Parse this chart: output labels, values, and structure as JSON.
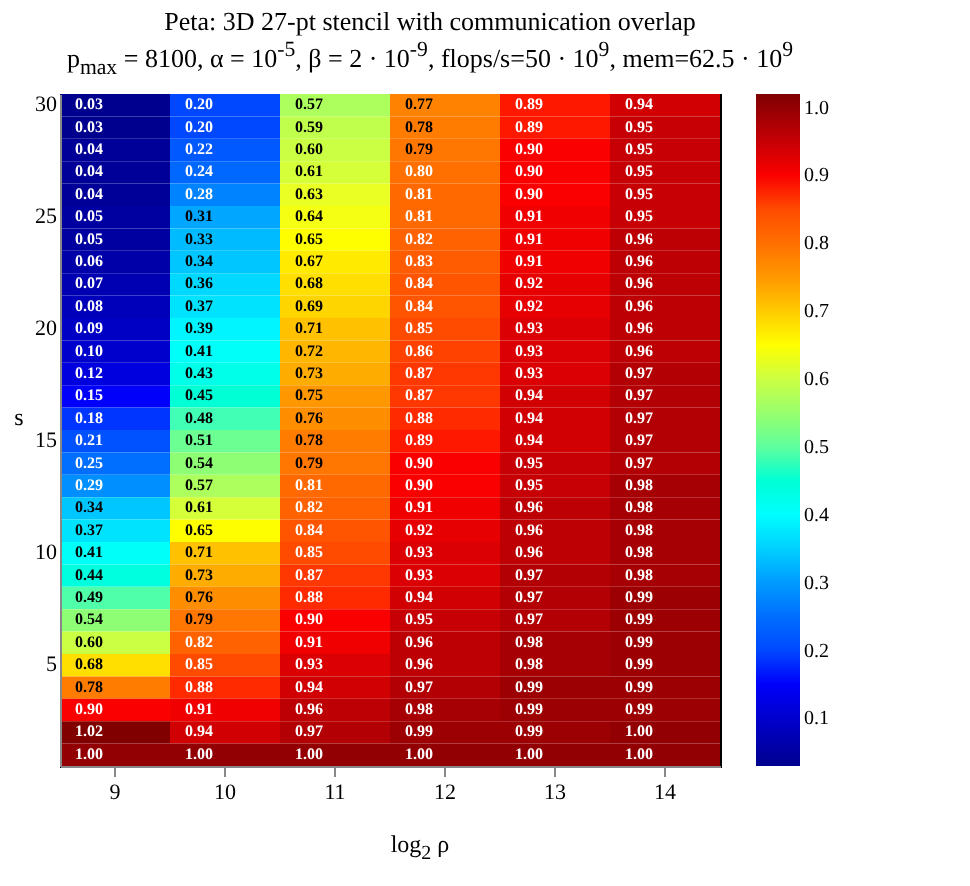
{
  "chart_data": {
    "type": "heatmap",
    "title": "Peta: 3D 27-pt stencil with communication overlap",
    "subtitle": "p$_{max}$ = 8100, α = 10$^{-5}$, β = 2 · 10$^{-9}$, flops/s=50 · 10$^{9}$, mem=62.5 · 10$^{9}$",
    "xlabel": "log$_{2}$ ρ",
    "ylabel": "s",
    "categories": [
      "9",
      "10",
      "11",
      "12",
      "13",
      "14"
    ],
    "y_categories": [
      "30",
      null,
      null,
      null,
      null,
      "25",
      null,
      null,
      null,
      null,
      "20",
      null,
      null,
      null,
      null,
      "15",
      null,
      null,
      null,
      null,
      "10",
      null,
      null,
      null,
      null,
      "5",
      null,
      null,
      null,
      null
    ],
    "cells": [
      [
        0.03,
        0.2,
        0.57,
        0.77,
        0.89,
        0.94
      ],
      [
        0.03,
        0.2,
        0.59,
        0.78,
        0.89,
        0.95
      ],
      [
        0.04,
        0.22,
        0.6,
        0.79,
        0.9,
        0.95
      ],
      [
        0.04,
        0.24,
        0.61,
        0.8,
        0.9,
        0.95
      ],
      [
        0.04,
        0.28,
        0.63,
        0.81,
        0.9,
        0.95
      ],
      [
        0.05,
        0.31,
        0.64,
        0.81,
        0.91,
        0.95
      ],
      [
        0.05,
        0.33,
        0.65,
        0.82,
        0.91,
        0.96
      ],
      [
        0.06,
        0.34,
        0.67,
        0.83,
        0.91,
        0.96
      ],
      [
        0.07,
        0.36,
        0.68,
        0.84,
        0.92,
        0.96
      ],
      [
        0.08,
        0.37,
        0.69,
        0.84,
        0.92,
        0.96
      ],
      [
        0.09,
        0.39,
        0.71,
        0.85,
        0.93,
        0.96
      ],
      [
        0.1,
        0.41,
        0.72,
        0.86,
        0.93,
        0.96
      ],
      [
        0.12,
        0.43,
        0.73,
        0.87,
        0.93,
        0.97
      ],
      [
        0.15,
        0.45,
        0.75,
        0.87,
        0.94,
        0.97
      ],
      [
        0.18,
        0.48,
        0.76,
        0.88,
        0.94,
        0.97
      ],
      [
        0.21,
        0.51,
        0.78,
        0.89,
        0.94,
        0.97
      ],
      [
        0.25,
        0.54,
        0.79,
        0.9,
        0.95,
        0.97
      ],
      [
        0.29,
        0.57,
        0.81,
        0.9,
        0.95,
        0.98
      ],
      [
        0.34,
        0.61,
        0.82,
        0.91,
        0.96,
        0.98
      ],
      [
        0.37,
        0.65,
        0.84,
        0.92,
        0.96,
        0.98
      ],
      [
        0.41,
        0.71,
        0.85,
        0.93,
        0.96,
        0.98
      ],
      [
        0.44,
        0.73,
        0.87,
        0.93,
        0.97,
        0.98
      ],
      [
        0.49,
        0.76,
        0.88,
        0.94,
        0.97,
        0.99
      ],
      [
        0.54,
        0.79,
        0.9,
        0.95,
        0.97,
        0.99
      ],
      [
        0.6,
        0.82,
        0.91,
        0.96,
        0.98,
        0.99
      ],
      [
        0.68,
        0.85,
        0.93,
        0.96,
        0.98,
        0.99
      ],
      [
        0.78,
        0.88,
        0.94,
        0.97,
        0.99,
        0.99
      ],
      [
        0.9,
        0.91,
        0.96,
        0.98,
        0.99,
        0.99
      ],
      [
        1.02,
        0.94,
        0.97,
        0.99,
        0.99,
        1.0
      ],
      [
        1.0,
        1.0,
        1.0,
        1.0,
        1.0,
        1.0
      ]
    ],
    "cell_labels": [
      [
        "0.03",
        "0.20",
        "0.57",
        "0.77",
        "0.89",
        "0.94"
      ],
      [
        "0.03",
        "0.20",
        "0.59",
        "0.78",
        "0.89",
        "0.95"
      ],
      [
        "0.04",
        "0.22",
        "0.60",
        "0.79",
        "0.90",
        "0.95"
      ],
      [
        "0.04",
        "0.24",
        "0.61",
        "0.80",
        "0.90",
        "0.95"
      ],
      [
        "0.04",
        "0.28",
        "0.63",
        "0.81",
        "0.90",
        "0.95"
      ],
      [
        "0.05",
        "0.31",
        "0.64",
        "0.81",
        "0.91",
        "0.95"
      ],
      [
        "0.05",
        "0.33",
        "0.65",
        "0.82",
        "0.91",
        "0.96"
      ],
      [
        "0.06",
        "0.34",
        "0.67",
        "0.83",
        "0.91",
        "0.96"
      ],
      [
        "0.07",
        "0.36",
        "0.68",
        "0.84",
        "0.92",
        "0.96"
      ],
      [
        "0.08",
        "0.37",
        "0.69",
        "0.84",
        "0.92",
        "0.96"
      ],
      [
        "0.09",
        "0.39",
        "0.71",
        "0.85",
        "0.93",
        "0.96"
      ],
      [
        "0.10",
        "0.41",
        "0.72",
        "0.86",
        "0.93",
        "0.96"
      ],
      [
        "0.12",
        "0.43",
        "0.73",
        "0.87",
        "0.93",
        "0.97"
      ],
      [
        "0.15",
        "0.45",
        "0.75",
        "0.87",
        "0.94",
        "0.97"
      ],
      [
        "0.18",
        "0.48",
        "0.76",
        "0.88",
        "0.94",
        "0.97"
      ],
      [
        "0.21",
        "0.51",
        "0.78",
        "0.89",
        "0.94",
        "0.97"
      ],
      [
        "0.25",
        "0.54",
        "0.79",
        "0.90",
        "0.95",
        "0.97"
      ],
      [
        "0.29",
        "0.57",
        "0.81",
        "0.90",
        "0.95",
        "0.98"
      ],
      [
        "0.34",
        "0.61",
        "0.82",
        "0.91",
        "0.96",
        "0.98"
      ],
      [
        "0.37",
        "0.65",
        "0.84",
        "0.92",
        "0.96",
        "0.98"
      ],
      [
        "0.41",
        "0.71",
        "0.85",
        "0.93",
        "0.96",
        "0.98"
      ],
      [
        "0.44",
        "0.73",
        "0.87",
        "0.93",
        "0.97",
        "0.98"
      ],
      [
        "0.49",
        "0.76",
        "0.88",
        "0.94",
        "0.97",
        "0.99"
      ],
      [
        "0.54",
        "0.79",
        "0.90",
        "0.95",
        "0.97",
        "0.99"
      ],
      [
        "0.60",
        "0.82",
        "0.91",
        "0.96",
        "0.98",
        "0.99"
      ],
      [
        "0.68",
        "0.85",
        "0.93",
        "0.96",
        "0.98",
        "0.99"
      ],
      [
        "0.78",
        "0.88",
        "0.94",
        "0.97",
        "0.99",
        "0.99"
      ],
      [
        "0.90",
        "0.91",
        "0.96",
        "0.98",
        "0.99",
        "0.99"
      ],
      [
        "1.02",
        "0.94",
        "0.97",
        "0.99",
        "0.99",
        "1.00"
      ],
      [
        "1.00",
        "1.00",
        "1.00",
        "1.00",
        "1.00",
        "1.00"
      ]
    ],
    "clim": [
      0.03,
      1.02
    ],
    "cticks": [
      0.1,
      0.2,
      0.3,
      0.4,
      0.5,
      0.6,
      0.7,
      0.8,
      0.9,
      {
        "value": 1,
        "label": "1.0"
      }
    ]
  }
}
